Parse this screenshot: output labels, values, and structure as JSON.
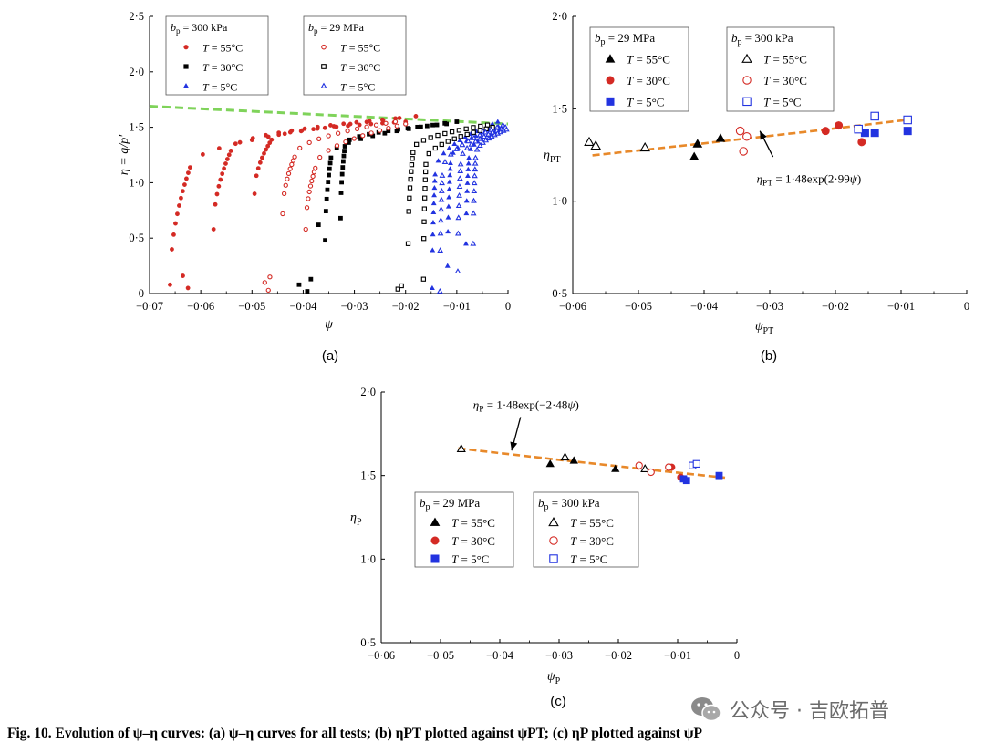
{
  "figure": {
    "caption": "Fig. 10.  Evolution of ψ–η curves: (a) ψ–η curves for all tests; (b) ηPT plotted against ψPT; (c) ηP plotted against ψP",
    "watermark": "公众号 · 吉欧拓普",
    "colors": {
      "t55": "#d42a24",
      "t30": "#000000",
      "t5": "#2233e0",
      "fit_green": "#7fd35a",
      "fit_orange": "#e8892a"
    }
  },
  "chart_data": [
    {
      "id": "a",
      "panel_label": "(a)",
      "type": "scatter",
      "xlabel": "ψ",
      "ylabel": "η = q/p′",
      "xlim": [
        -0.07,
        0
      ],
      "ylim": [
        0,
        2.5
      ],
      "xticks": [
        -0.07,
        -0.06,
        -0.05,
        -0.04,
        -0.03,
        -0.02,
        -0.01,
        0
      ],
      "xtick_labels": [
        "−0·07",
        "−0·06",
        "−0·05",
        "−0·04",
        "−0·03",
        "−0·02",
        "−0·01",
        "0"
      ],
      "yticks": [
        0,
        0.5,
        1.0,
        1.5,
        2.0,
        2.5
      ],
      "ytick_labels": [
        "0",
        "0·5",
        "1·0",
        "1·5",
        "2·0",
        "2·5"
      ],
      "fit_line": {
        "color": "#7fd35a",
        "points": [
          [
            -0.07,
            1.69
          ],
          [
            0,
            1.53
          ]
        ]
      },
      "legend_groups": [
        {
          "title": "bp = 300 kPa",
          "title_sym": "b",
          "title_sub": "p",
          "title_rest": " = 300 kPa",
          "entries": [
            {
              "label": "T = 55°C",
              "marker": "circle",
              "filled": true,
              "color": "#d42a24"
            },
            {
              "label": "T = 30°C",
              "marker": "square",
              "filled": true,
              "color": "#000000"
            },
            {
              "label": "T = 5°C",
              "marker": "triangle",
              "filled": true,
              "color": "#2233e0"
            }
          ]
        },
        {
          "title": "bp = 29 MPa",
          "title_sym": "b",
          "title_sub": "p",
          "title_rest": " = 29 MPa",
          "entries": [
            {
              "label": "T = 55°C",
              "marker": "circle",
              "filled": false,
              "color": "#d42a24"
            },
            {
              "label": "T = 30°C",
              "marker": "square",
              "filled": false,
              "color": "#000000"
            },
            {
              "label": "T = 5°C",
              "marker": "triangle",
              "filled": false,
              "color": "#2233e0"
            }
          ]
        }
      ],
      "series": [
        {
          "name": "bp = 300 kPa, T = 55°C",
          "marker": "circle",
          "filled": true,
          "color": "#d42a24",
          "curves": [
            {
              "start": [
                -0.066,
                0.08
              ],
              "knee": [
                -0.062,
                1.15
              ],
              "plateau_end": [
                -0.018,
                1.6
              ],
              "n": 26
            },
            {
              "start": [
                -0.0575,
                0.58
              ],
              "knee": [
                -0.054,
                1.3
              ],
              "plateau_end": [
                -0.022,
                1.58
              ],
              "n": 24
            },
            {
              "start": [
                -0.0495,
                0.9
              ],
              "knee": [
                -0.046,
                1.4
              ],
              "plateau_end": [
                -0.02,
                1.55
              ],
              "n": 22
            }
          ],
          "extra_points": [
            [
              -0.0635,
              0.16
            ],
            [
              -0.0625,
              0.05
            ]
          ]
        },
        {
          "name": "bp = 300 kPa, T = 30°C",
          "marker": "square",
          "filled": true,
          "color": "#000000",
          "curves": [
            {
              "start": [
                -0.0357,
                0.48
              ],
              "knee": [
                -0.0345,
                1.25
              ],
              "plateau_end": [
                -0.01,
                1.55
              ],
              "n": 20
            },
            {
              "start": [
                -0.0327,
                0.68
              ],
              "knee": [
                -0.0318,
                1.35
              ],
              "plateau_end": [
                -0.012,
                1.53
              ],
              "n": 20
            }
          ],
          "extra_points": [
            [
              -0.0408,
              0.08
            ],
            [
              -0.0392,
              0.02
            ],
            [
              -0.0385,
              0.13
            ],
            [
              -0.037,
              0.62
            ]
          ]
        },
        {
          "name": "bp = 300 kPa, T = 5°C",
          "marker": "triangle",
          "filled": true,
          "color": "#2233e0",
          "curves": [
            {
              "start": [
                -0.0148,
                0.05
              ],
              "knee": [
                -0.0142,
                1.1
              ],
              "plateau_end": [
                -0.002,
                1.55
              ],
              "n": 22
            },
            {
              "start": [
                -0.0118,
                0.25
              ],
              "knee": [
                -0.0112,
                1.2
              ],
              "plateau_end": [
                -0.001,
                1.52
              ],
              "n": 22
            },
            {
              "start": [
                -0.0082,
                0.45
              ],
              "knee": [
                -0.0076,
                1.25
              ],
              "plateau_end": [
                -0.0005,
                1.5
              ],
              "n": 20
            }
          ],
          "extra_points": []
        },
        {
          "name": "bp = 29 MPa, T = 55°C",
          "marker": "circle",
          "filled": false,
          "color": "#d42a24",
          "curves": [
            {
              "start": [
                -0.044,
                0.72
              ],
              "knee": [
                -0.0415,
                1.25
              ],
              "plateau_end": [
                -0.022,
                1.55
              ],
              "n": 20
            },
            {
              "start": [
                -0.0395,
                0.58
              ],
              "knee": [
                -0.0375,
                1.15
              ],
              "plateau_end": [
                -0.02,
                1.53
              ],
              "n": 20
            }
          ],
          "extra_points": [
            [
              -0.0475,
              0.1
            ],
            [
              -0.0468,
              0.03
            ],
            [
              -0.0465,
              0.15
            ]
          ]
        },
        {
          "name": "bp = 29 MPa, T = 30°C",
          "marker": "square",
          "filled": false,
          "color": "#000000",
          "curves": [
            {
              "start": [
                -0.0195,
                0.45
              ],
              "knee": [
                -0.0185,
                1.3
              ],
              "plateau_end": [
                -0.004,
                1.52
              ],
              "n": 20
            },
            {
              "start": [
                -0.0165,
                0.13
              ],
              "knee": [
                -0.016,
                1.2
              ],
              "plateau_end": [
                -0.003,
                1.5
              ],
              "n": 20
            }
          ],
          "extra_points": [
            [
              -0.0215,
              0.04
            ],
            [
              -0.0208,
              0.07
            ]
          ]
        },
        {
          "name": "bp = 29 MPa, T = 5°C",
          "marker": "triangle",
          "filled": false,
          "color": "#2233e0",
          "curves": [
            {
              "start": [
                -0.0133,
                0.02
              ],
              "knee": [
                -0.0128,
                1.1
              ],
              "plateau_end": [
                -0.001,
                1.52
              ],
              "n": 20
            },
            {
              "start": [
                -0.0098,
                0.2
              ],
              "knee": [
                -0.0092,
                1.2
              ],
              "plateau_end": [
                -0.0005,
                1.5
              ],
              "n": 20
            },
            {
              "start": [
                -0.0068,
                0.45
              ],
              "knee": [
                -0.0063,
                1.25
              ],
              "plateau_end": [
                -0.0003,
                1.48
              ],
              "n": 20
            }
          ],
          "extra_points": []
        }
      ]
    },
    {
      "id": "b",
      "panel_label": "(b)",
      "type": "scatter",
      "xlabel": "ψPT",
      "xlabel_sym": "ψ",
      "xlabel_sub": "PT",
      "ylabel": "ηPT",
      "ylabel_sym": "η",
      "ylabel_sub": "PT",
      "xlim": [
        -0.06,
        0
      ],
      "ylim": [
        0.5,
        2.0
      ],
      "xticks": [
        -0.06,
        -0.05,
        -0.04,
        -0.03,
        -0.02,
        -0.01,
        0
      ],
      "xtick_labels": [
        "−0·06",
        "−0·05",
        "−0·04",
        "−0·03",
        "−0·02",
        "−0·01",
        "0"
      ],
      "yticks": [
        0.5,
        1.0,
        1.5,
        2.0
      ],
      "ytick_labels": [
        "0·5",
        "1·0",
        "1·5",
        "2·0"
      ],
      "fit_line": {
        "color": "#e8892a",
        "a": 1.48,
        "b": 2.99,
        "x_range": [
          -0.057,
          -0.009
        ]
      },
      "equation": {
        "label": "ηPT = 1·48exp(2·99ψ)",
        "pre": "η",
        "sub": "PT",
        "post": " = 1·48exp(2·99",
        "var": "ψ",
        "end": ")",
        "anchor": [
          -0.032,
          1.1
        ],
        "arrow_from": [
          -0.0295,
          1.24
        ],
        "arrow_to": [
          -0.0315,
          1.38
        ]
      },
      "legend_groups": [
        {
          "title": "bp = 29 MPa",
          "title_sym": "b",
          "title_sub": "p",
          "title_rest": " = 29 MPa",
          "entries": [
            {
              "label": "T = 55°C",
              "marker": "triangle",
              "filled": true,
              "color": "#000000"
            },
            {
              "label": "T = 30°C",
              "marker": "circle",
              "filled": true,
              "color": "#d42a24"
            },
            {
              "label": "T = 5°C",
              "marker": "square",
              "filled": true,
              "color": "#2233e0"
            }
          ]
        },
        {
          "title": "bp = 300 kPa",
          "title_sym": "b",
          "title_sub": "p",
          "title_rest": " = 300 kPa",
          "entries": [
            {
              "label": "T = 55°C",
              "marker": "triangle",
              "filled": false,
              "color": "#000000"
            },
            {
              "label": "T = 30°C",
              "marker": "circle",
              "filled": false,
              "color": "#d42a24"
            },
            {
              "label": "T = 5°C",
              "marker": "square",
              "filled": false,
              "color": "#2233e0"
            }
          ]
        }
      ],
      "series": [
        {
          "name": "bp = 29 MPa, T = 55°C",
          "marker": "triangle",
          "filled": true,
          "color": "#000000",
          "points": [
            [
              -0.0415,
              1.24
            ],
            [
              -0.041,
              1.31
            ],
            [
              -0.0375,
              1.34
            ]
          ]
        },
        {
          "name": "bp = 29 MPa, T = 30°C",
          "marker": "circle",
          "filled": true,
          "color": "#d42a24",
          "points": [
            [
              -0.0215,
              1.38
            ],
            [
              -0.0195,
              1.41
            ],
            [
              -0.016,
              1.32
            ]
          ]
        },
        {
          "name": "bp = 29 MPa, T = 5°C",
          "marker": "square",
          "filled": true,
          "color": "#2233e0",
          "points": [
            [
              -0.0155,
              1.37
            ],
            [
              -0.014,
              1.37
            ],
            [
              -0.009,
              1.38
            ]
          ]
        },
        {
          "name": "bp = 300 kPa, T = 55°C",
          "marker": "triangle",
          "filled": false,
          "color": "#000000",
          "points": [
            [
              -0.0575,
              1.32
            ],
            [
              -0.0565,
              1.3
            ],
            [
              -0.049,
              1.29
            ]
          ]
        },
        {
          "name": "bp = 300 kPa, T = 30°C",
          "marker": "circle",
          "filled": false,
          "color": "#d42a24",
          "points": [
            [
              -0.0345,
              1.38
            ],
            [
              -0.0335,
              1.35
            ],
            [
              -0.034,
              1.27
            ]
          ]
        },
        {
          "name": "bp = 300 kPa, T = 5°C",
          "marker": "square",
          "filled": false,
          "color": "#2233e0",
          "points": [
            [
              -0.0165,
              1.39
            ],
            [
              -0.014,
              1.46
            ],
            [
              -0.009,
              1.44
            ]
          ]
        }
      ]
    },
    {
      "id": "c",
      "panel_label": "(c)",
      "type": "scatter",
      "xlabel": "ψP",
      "xlabel_sym": "ψ",
      "xlabel_sub": "P",
      "ylabel": "ηP",
      "ylabel_sym": "η",
      "ylabel_sub": "P",
      "xlim": [
        -0.06,
        0
      ],
      "ylim": [
        0.5,
        2.0
      ],
      "xticks": [
        -0.06,
        -0.05,
        -0.04,
        -0.03,
        -0.02,
        -0.01,
        0
      ],
      "xtick_labels": [
        "−0·06",
        "−0·05",
        "−0·04",
        "−0·03",
        "−0·02",
        "−0·01",
        "0"
      ],
      "yticks": [
        0.5,
        1.0,
        1.5,
        2.0
      ],
      "ytick_labels": [
        "0·5",
        "1·0",
        "1·5",
        "2·0"
      ],
      "fit_line": {
        "color": "#e8892a",
        "a": 1.48,
        "b": -2.48,
        "x_range": [
          -0.047,
          -0.002
        ]
      },
      "equation": {
        "label": "ηP = 1·48exp(−2·48ψ)",
        "pre": "η",
        "sub": "P",
        "post": " = 1·48exp(−2·48",
        "var": "ψ",
        "end": ")",
        "anchor": [
          -0.0445,
          1.9
        ],
        "arrow_from": [
          -0.0365,
          1.85
        ],
        "arrow_to": [
          -0.038,
          1.65
        ]
      },
      "legend_groups": [
        {
          "title": "bp = 29 MPa",
          "title_sym": "b",
          "title_sub": "p",
          "title_rest": " = 29 MPa",
          "entries": [
            {
              "label": "T = 55°C",
              "marker": "triangle",
              "filled": true,
              "color": "#000000"
            },
            {
              "label": "T = 30°C",
              "marker": "circle",
              "filled": true,
              "color": "#d42a24"
            },
            {
              "label": "T = 5°C",
              "marker": "square",
              "filled": true,
              "color": "#2233e0"
            }
          ]
        },
        {
          "title": "bp = 300 kPa",
          "title_sym": "b",
          "title_sub": "p",
          "title_rest": " = 300 kPa",
          "entries": [
            {
              "label": "T = 55°C",
              "marker": "triangle",
              "filled": false,
              "color": "#000000"
            },
            {
              "label": "T = 30°C",
              "marker": "circle",
              "filled": false,
              "color": "#d42a24"
            },
            {
              "label": "T = 5°C",
              "marker": "square",
              "filled": false,
              "color": "#2233e0"
            }
          ]
        }
      ],
      "series": [
        {
          "name": "bp = 29 MPa, T = 55°C",
          "marker": "triangle",
          "filled": true,
          "color": "#000000",
          "points": [
            [
              -0.0465,
              1.66
            ],
            [
              -0.0315,
              1.57
            ],
            [
              -0.0275,
              1.59
            ],
            [
              -0.0205,
              1.54
            ]
          ]
        },
        {
          "name": "bp = 29 MPa, T = 30°C",
          "marker": "circle",
          "filled": true,
          "color": "#d42a24",
          "points": [
            [
              -0.011,
              1.55
            ],
            [
              -0.0095,
              1.49
            ]
          ]
        },
        {
          "name": "bp = 29 MPa, T = 5°C",
          "marker": "square",
          "filled": true,
          "color": "#2233e0",
          "points": [
            [
              -0.009,
              1.48
            ],
            [
              -0.0085,
              1.47
            ],
            [
              -0.003,
              1.5
            ]
          ]
        },
        {
          "name": "bp = 300 kPa, T = 55°C",
          "marker": "triangle",
          "filled": false,
          "color": "#000000",
          "points": [
            [
              -0.0465,
              1.66
            ],
            [
              -0.029,
              1.61
            ],
            [
              -0.0155,
              1.54
            ]
          ]
        },
        {
          "name": "bp = 300 kPa, T = 30°C",
          "marker": "circle",
          "filled": false,
          "color": "#d42a24",
          "points": [
            [
              -0.0165,
              1.56
            ],
            [
              -0.0145,
              1.52
            ],
            [
              -0.0115,
              1.55
            ]
          ]
        },
        {
          "name": "bp = 300 kPa, T = 5°C",
          "marker": "square",
          "filled": false,
          "color": "#2233e0",
          "points": [
            [
              -0.0075,
              1.56
            ],
            [
              -0.0068,
              1.57
            ]
          ]
        }
      ]
    }
  ]
}
